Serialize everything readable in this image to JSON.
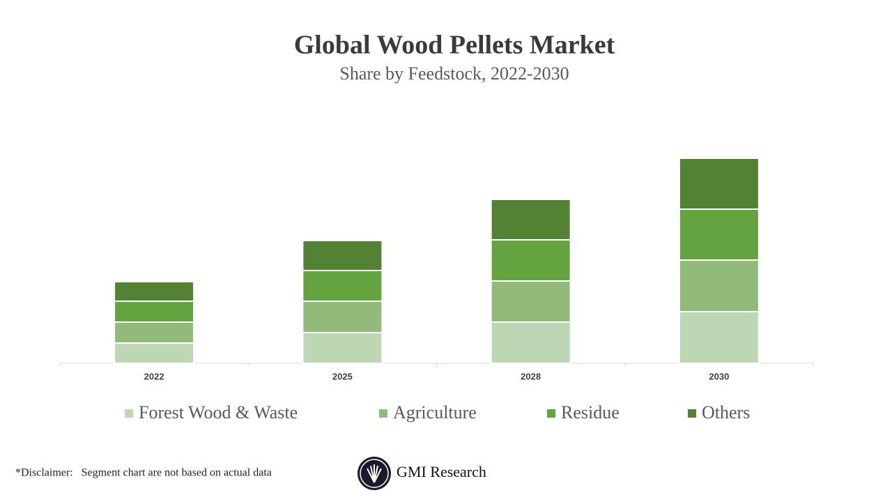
{
  "chart_data": {
    "type": "stacked_bar",
    "title": "Global Wood Pellets Market",
    "subtitle": "Share by Feedstock, 2022-2030",
    "categories": [
      "2022",
      "2025",
      "2028",
      "2030"
    ],
    "series": [
      {
        "name": "Forest Wood & Waste",
        "color": "#bdd7b5",
        "values": [
          29,
          44,
          59,
          74
        ]
      },
      {
        "name": "Agriculture",
        "color": "#92bb7b",
        "values": [
          30,
          45,
          59,
          74
        ]
      },
      {
        "name": "Residue",
        "color": "#65a340",
        "values": [
          30,
          44,
          59,
          73
        ]
      },
      {
        "name": "Others",
        "color": "#548235",
        "values": [
          28,
          43,
          58,
          73
        ]
      }
    ],
    "legend": "bottom"
  },
  "footer": {
    "disclaimer": "*Disclaimer:   Segment chart are not based on actual data",
    "brand": "GMI Research"
  }
}
